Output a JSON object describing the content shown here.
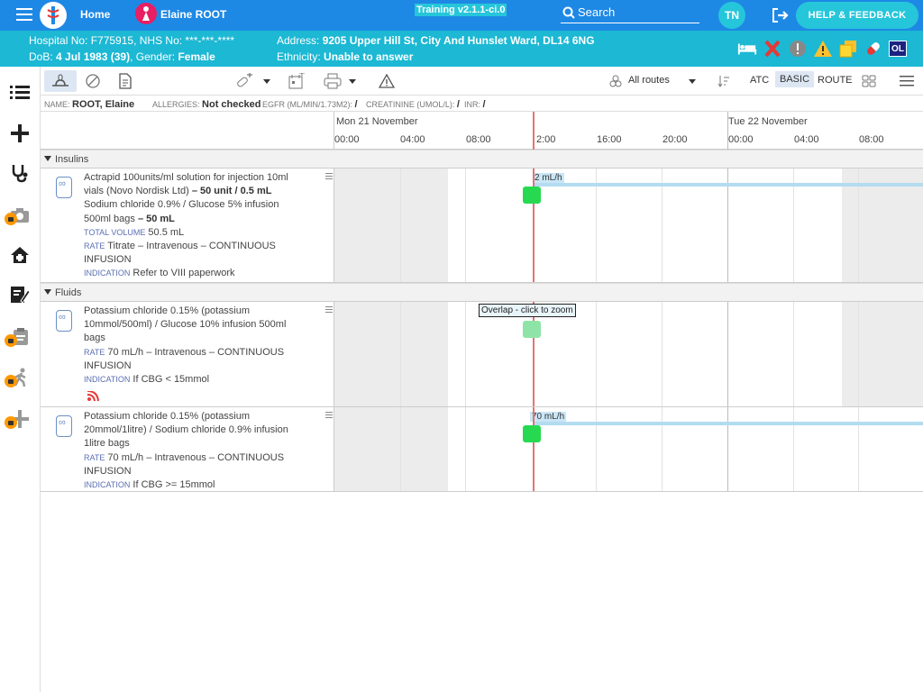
{
  "topbar": {
    "home_label": "Home",
    "patient_name": "Elaine ROOT",
    "training_label": "Training v2.1.1-ci.0",
    "search_label": "Search",
    "user_initials": "TN",
    "help_label": "HELP & FEEDBACK"
  },
  "patient_bar": {
    "hospital_line": "Hospital No: F775915, NHS No: ***-***-****",
    "dob_prefix": "DoB: ",
    "dob_value": "4 Jul 1983 (39)",
    "gender_prefix": ", Gender: ",
    "gender_value": "Female",
    "address_prefix": "Address: ",
    "address_value": "9205 Upper Hill St, City And Hunslet Ward, DL14 6NG",
    "ethnicity_prefix": "Ethnicity: ",
    "ethnicity_value": "Unable to answer",
    "badge_ol": "OL"
  },
  "toolbar": {
    "routes_label": "All routes",
    "view_atc": "ATC",
    "view_basic": "BASIC",
    "view_route": "ROUTE"
  },
  "info": {
    "name_key": "NAME:",
    "name_value": "ROOT, Elaine",
    "allergies_key": "ALLERGIES:",
    "allergies_value": "Not checked",
    "egfr_key": "EGFR (ML/MIN/1.73M2):",
    "egfr_value": "/",
    "creat_key": "CREATININE (UMOL/L):",
    "creat_value": "/",
    "inr_key": "INR:",
    "inr_value": "/"
  },
  "timeline": {
    "day1": "Mon 21 November",
    "day2": "Tue 22 November",
    "hours": [
      "00:00",
      "04:00",
      "08:00",
      "2:00",
      "16:00",
      "20:00",
      "00:00",
      "04:00",
      "08:00"
    ]
  },
  "sections": {
    "insulins": "Insulins",
    "fluids": "Fluids"
  },
  "rows": [
    {
      "line1": "Actrapid 100units/ml solution for injection 10ml",
      "line2a": "vials (Novo Nordisk Ltd) ",
      "line2b": "– 50 unit / 0.5 mL",
      "line3": "Sodium chloride 0.9% / Glucose 5% infusion",
      "line4a": "500ml bags ",
      "line4b": "– 50 mL",
      "tv_key": "TOTAL VOLUME",
      "tv_value": " 50.5 mL",
      "rate_key": "RATE",
      "rate_value": " Titrate – Intravenous – CONTINUOUS",
      "rate_value2": "INFUSION",
      "ind_key": "INDICATION",
      "ind_value": " Refer to VIII paperwork",
      "chart_rate": "2 mL/h"
    },
    {
      "line1": "Potassium chloride 0.15% (potassium",
      "line2": "10mmol/500ml) / Glucose 10% infusion 500ml",
      "line3": "bags",
      "rate_key": "RATE",
      "rate_value": " 70 mL/h – Intravenous – CONTINUOUS",
      "rate_value2": "INFUSION",
      "ind_key": "INDICATION",
      "ind_value": " If CBG < 15mmol",
      "overlap_label": "Overlap - click to zoom"
    },
    {
      "line1": "Potassium chloride 0.15% (potassium",
      "line2": "20mmol/1litre) / Sodium chloride 0.9% infusion",
      "line3": "1litre bags",
      "rate_key": "RATE",
      "rate_value": " 70 mL/h – Intravenous – CONTINUOUS",
      "rate_value2": "INFUSION",
      "ind_key": "INDICATION",
      "ind_value": " If CBG >= 15mmol",
      "chart_rate": "70 mL/h"
    }
  ],
  "colors": {
    "topbar": "#1e88e5",
    "patient_bar": "#1cb8d4",
    "accent": "#26c6da",
    "now_line": "#e57373",
    "marker": "#26d950"
  },
  "icons": [
    "menu-icon",
    "logo-icon",
    "female-patient-icon",
    "search-icon",
    "logout-icon",
    "bed-icon",
    "red-x-icon",
    "alert-circle-icon",
    "warning-icon",
    "notes-icon",
    "pill-icon",
    "list-icon",
    "plus-icon",
    "stethoscope-icon",
    "camera-icon",
    "home-plus-icon",
    "sign-icon",
    "clipboard-icon",
    "walk-icon",
    "add-icon",
    "feed-icon"
  ]
}
